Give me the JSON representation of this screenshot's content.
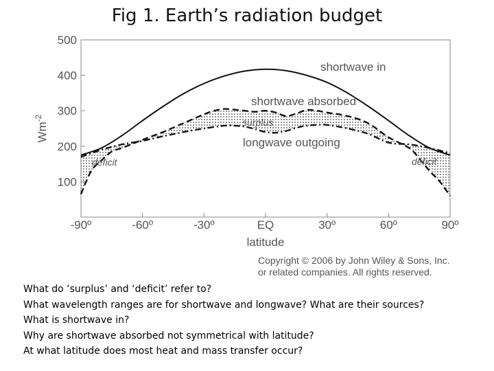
{
  "slide": {
    "title": "Fig 1.  Earth’s radiation budget",
    "questions": [
      "What do ‘surplus’ and ‘deficit’ refer to?",
      "What wavelength ranges are for shortwave and longwave?  What are their sources?",
      "What is shortwave in?",
      "Why are shortwave absorbed not symmetrical with latitude?",
      "At what latitude does most heat and mass transfer occur?"
    ]
  },
  "copyright": {
    "line1": "Copyright © 2006 by John Wiley & Sons, Inc.",
    "line2": "or related companies. All rights reserved."
  },
  "chart_data": {
    "type": "line",
    "xlabel": "latitude",
    "ylabel": "Wm",
    "ylabel_sup": "-2",
    "xlim": [
      -90,
      90
    ],
    "ylim": [
      0,
      500
    ],
    "x_ticks": [
      -90,
      -60,
      -30,
      0,
      30,
      60,
      90
    ],
    "x_tick_labels": [
      "-90º",
      "-60º",
      "-30º",
      "EQ",
      "30º",
      "60º",
      "90º"
    ],
    "y_ticks": [
      100,
      200,
      300,
      400,
      500
    ],
    "y_tick_labels": [
      "100",
      "200",
      "300",
      "400",
      "500"
    ],
    "grid": false,
    "series": [
      {
        "name": "shortwave in",
        "style": "solid",
        "color": "#111111",
        "x": [
          -90,
          -80,
          -70,
          -60,
          -50,
          -40,
          -30,
          -20,
          -10,
          0,
          10,
          20,
          30,
          40,
          50,
          60,
          70,
          80,
          90
        ],
        "y": [
          175,
          195,
          230,
          272,
          312,
          348,
          377,
          398,
          412,
          417,
          413,
          400,
          380,
          350,
          313,
          272,
          230,
          195,
          175
        ]
      },
      {
        "name": "shortwave absorbed",
        "style": "dashed",
        "color": "#111111",
        "x": [
          -90,
          -85,
          -80,
          -75,
          -70,
          -60,
          -50,
          -40,
          -30,
          -25,
          -20,
          -15,
          -10,
          -5,
          0,
          5,
          10,
          15,
          20,
          25,
          30,
          40,
          50,
          60,
          70,
          75,
          80,
          85,
          90
        ],
        "y": [
          65,
          130,
          160,
          185,
          195,
          218,
          240,
          265,
          290,
          300,
          305,
          303,
          300,
          297,
          300,
          295,
          285,
          292,
          302,
          300,
          295,
          285,
          265,
          225,
          195,
          165,
          130,
          100,
          60
        ]
      },
      {
        "name": "longwave outgoing",
        "style": "dashdot",
        "color": "#111111",
        "x": [
          -90,
          -80,
          -70,
          -60,
          -50,
          -40,
          -30,
          -20,
          -15,
          -10,
          -5,
          0,
          5,
          10,
          15,
          20,
          25,
          30,
          40,
          50,
          60,
          70,
          80,
          90
        ],
        "y": [
          170,
          190,
          205,
          215,
          228,
          240,
          250,
          258,
          258,
          255,
          248,
          240,
          238,
          243,
          252,
          258,
          260,
          260,
          250,
          235,
          210,
          205,
          195,
          180
        ]
      }
    ],
    "annotations": [
      "shortwave in",
      "shortwave absorbed",
      "surplus",
      "longwave outgoing",
      "deficit",
      "deficit"
    ]
  },
  "colors": {
    "line": "#111111",
    "text": "#555555",
    "axis": "#888888"
  }
}
